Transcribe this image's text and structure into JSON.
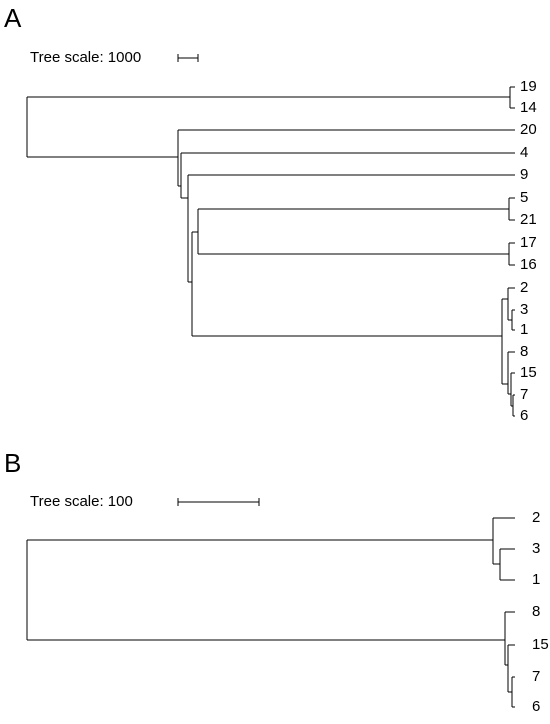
{
  "panels": [
    {
      "label": "A",
      "scale_label": "Tree scale: 1000",
      "leaves": [
        "19",
        "14",
        "20",
        "4",
        "9",
        "5",
        "21",
        "17",
        "16",
        "2",
        "3",
        "1",
        "8",
        "15",
        "7",
        "6"
      ]
    },
    {
      "label": "B",
      "scale_label": "Tree scale: 100",
      "leaves": [
        "2",
        "3",
        "1",
        "8",
        "15",
        "7",
        "6"
      ]
    }
  ]
}
